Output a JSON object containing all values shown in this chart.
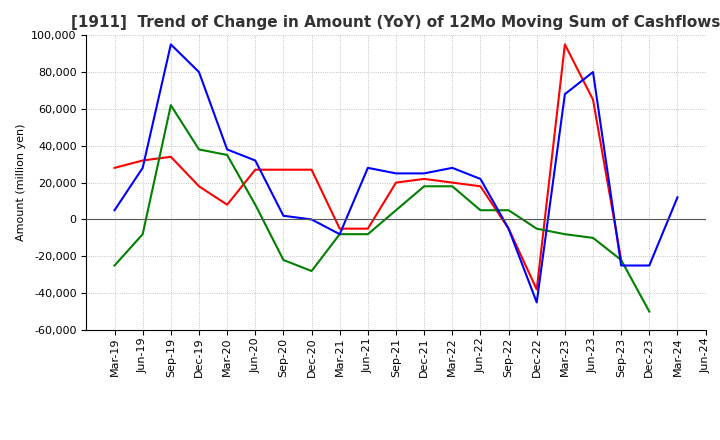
{
  "title": "[1911]  Trend of Change in Amount (YoY) of 12Mo Moving Sum of Cashflows",
  "ylabel": "Amount (million yen)",
  "x_labels": [
    "Mar-19",
    "Jun-19",
    "Sep-19",
    "Dec-19",
    "Mar-20",
    "Jun-20",
    "Sep-20",
    "Dec-20",
    "Mar-21",
    "Jun-21",
    "Sep-21",
    "Dec-21",
    "Mar-22",
    "Jun-22",
    "Sep-22",
    "Dec-22",
    "Mar-23",
    "Jun-23",
    "Sep-23",
    "Dec-23",
    "Mar-24",
    "Jun-24"
  ],
  "operating": [
    28000,
    32000,
    34000,
    18000,
    8000,
    27000,
    27000,
    27000,
    -5000,
    -5000,
    20000,
    22000,
    20000,
    18000,
    -5000,
    -38000,
    95000,
    65000,
    -22000,
    null,
    null,
    null
  ],
  "investing": [
    -25000,
    -8000,
    62000,
    38000,
    35000,
    8000,
    -22000,
    -28000,
    -8000,
    -8000,
    5000,
    18000,
    18000,
    5000,
    5000,
    -5000,
    -8000,
    -10000,
    -22000,
    -50000,
    null,
    null
  ],
  "free": [
    5000,
    28000,
    95000,
    80000,
    38000,
    32000,
    2000,
    0,
    -8000,
    28000,
    25000,
    25000,
    28000,
    22000,
    -5000,
    -45000,
    68000,
    80000,
    -25000,
    -25000,
    12000,
    null
  ],
  "ylim": [
    -60000,
    100000
  ],
  "yticks": [
    -60000,
    -40000,
    -20000,
    0,
    20000,
    40000,
    60000,
    80000,
    100000
  ],
  "operating_color": "#ff0000",
  "investing_color": "#008000",
  "free_color": "#0000ff",
  "background_color": "#ffffff",
  "grid_color": "#b0b0b0",
  "title_fontsize": 11,
  "legend_fontsize": 9,
  "axis_fontsize": 8
}
